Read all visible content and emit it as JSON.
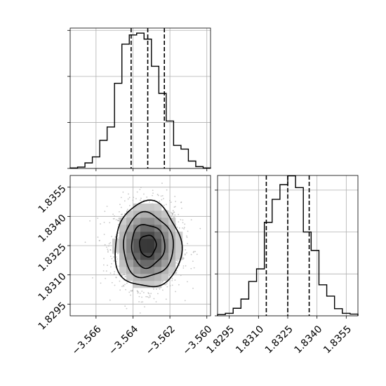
{
  "chart_data": [
    {
      "panel": "marginal-x",
      "type": "histogram",
      "step": true,
      "bin_edges": [
        -3.5674,
        -3.567,
        -3.5666,
        -3.5662,
        -3.5658,
        -3.5654,
        -3.565,
        -3.5646,
        -3.5642,
        -3.5638,
        -3.5634,
        -3.563,
        -3.5626,
        -3.5622,
        -3.5618,
        -3.5614,
        -3.561,
        -3.5606,
        -3.5602,
        -3.5598
      ],
      "values": [
        1,
        3,
        12,
        25,
        61,
        90,
        185,
        270,
        290,
        294,
        281,
        222,
        163,
        103,
        50,
        42,
        16,
        4,
        1
      ],
      "quantiles": [
        -3.5641,
        -3.5632,
        -3.5623
      ],
      "xlim": [
        -3.5674,
        -3.5598
      ],
      "yticks": [
        0,
        100,
        200,
        300
      ],
      "ylim": [
        0,
        305
      ],
      "grid": true
    },
    {
      "panel": "marginal-y",
      "type": "histogram",
      "step": true,
      "bin_edges": [
        1.8289,
        1.8293,
        1.8297,
        1.8301,
        1.8305,
        1.8309,
        1.8313,
        1.8317,
        1.8321,
        1.8325,
        1.8329,
        1.8333,
        1.8337,
        1.8341,
        1.8345,
        1.8349,
        1.8353,
        1.8357,
        1.8361
      ],
      "values": [
        3,
        6,
        18,
        40,
        82,
        112,
        223,
        278,
        313,
        334,
        306,
        200,
        156,
        74,
        47,
        17,
        6,
        4
      ],
      "quantiles": [
        1.8314,
        1.8325,
        1.8336
      ],
      "xticks": [
        "1.8295",
        "1.8310",
        "1.8325",
        "1.8340",
        "1.8355"
      ],
      "xlim": [
        1.8289,
        1.8361
      ],
      "yticks": [
        0,
        100,
        200,
        300
      ],
      "ylim": [
        0,
        335
      ],
      "grid": true
    },
    {
      "panel": "joint",
      "type": "density-contour",
      "xticks": [
        "−3.566",
        "−3.564",
        "−3.562",
        "−3.560"
      ],
      "yticks": [
        "1.8295",
        "1.8310",
        "1.8325",
        "1.8340",
        "1.8355"
      ],
      "xlim": [
        -3.5674,
        -3.5598
      ],
      "ylim": [
        1.8289,
        1.8361
      ],
      "center": [
        -3.5632,
        1.8325
      ],
      "std": [
        0.0009,
        0.0011
      ],
      "contour_levels_sigma": [
        0.5,
        1.0,
        1.5,
        2.0
      ],
      "point_count": 1700,
      "grid": true
    }
  ]
}
